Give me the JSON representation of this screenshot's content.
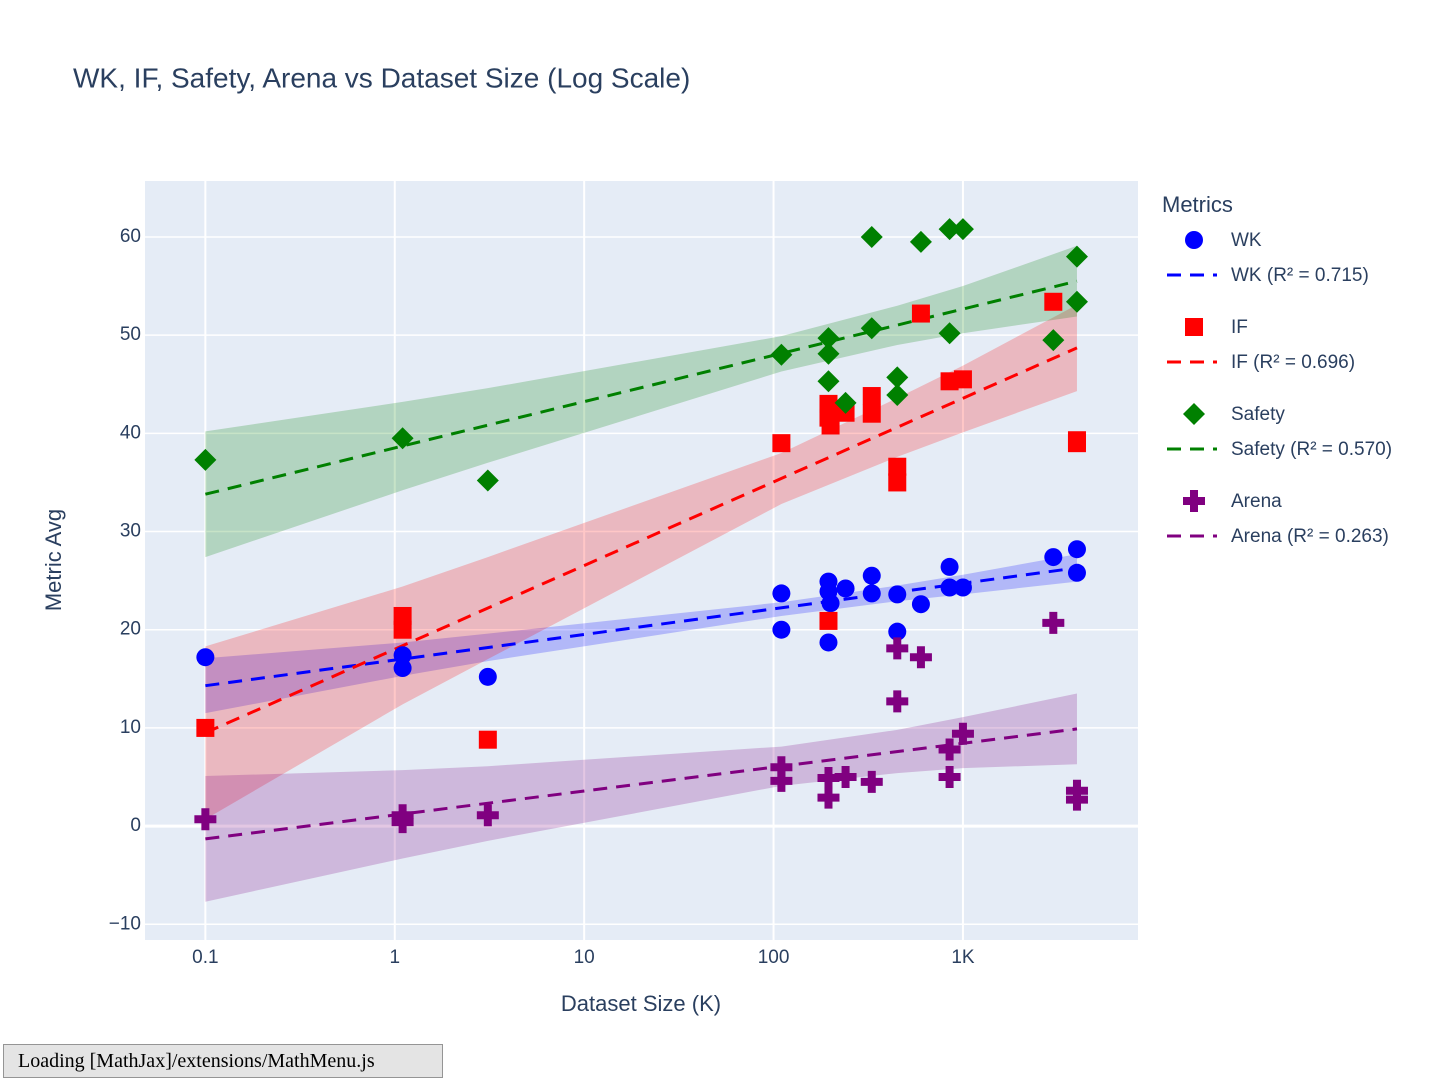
{
  "chart_data": {
    "type": "scatter",
    "title": "WK, IF, Safety, Arena vs Dataset Size (Log Scale)",
    "xlabel": "Dataset Size (K)",
    "ylabel": "Metric Avg",
    "xscale": "log",
    "xlim": [
      0.048,
      8400
    ],
    "ylim": [
      -11.6,
      65.7
    ],
    "xticks": [
      0.1,
      1,
      10,
      100,
      {
        "value": 1000,
        "label": "1K"
      }
    ],
    "yticks": [
      {
        "value": -10,
        "label": "−10"
      },
      0,
      10,
      20,
      30,
      40,
      50,
      60
    ],
    "grid": true,
    "legend_title": "Metrics",
    "legend_position": "right",
    "series": [
      {
        "name": "WK",
        "color": "#0000ff",
        "marker": "circle",
        "x": [
          0.1,
          1.1,
          1.1,
          3.1,
          110,
          110,
          195,
          195,
          195,
          200,
          240,
          330,
          330,
          450,
          450,
          600,
          850,
          850,
          1000,
          3000,
          4000,
          4000
        ],
        "values": [
          17.2,
          17.4,
          16.1,
          15.2,
          23.7,
          20.0,
          24.9,
          23.9,
          18.7,
          22.7,
          24.2,
          25.5,
          23.7,
          23.6,
          19.8,
          22.6,
          26.4,
          24.3,
          24.3,
          27.4,
          28.2,
          25.8
        ],
        "fit": {
          "name": "WK (R² = 0.715)",
          "x": [
            0.1,
            4000
          ],
          "values": [
            14.3,
            26.3
          ]
        },
        "band": {
          "x": [
            0.1,
            1.1,
            3.1,
            110,
            450,
            1000,
            4000
          ],
          "upper": [
            17.1,
            18.7,
            19.6,
            22.8,
            24.5,
            25.6,
            27.7
          ],
          "lower": [
            11.5,
            15.3,
            16.8,
            21.4,
            22.9,
            23.6,
            24.9
          ]
        }
      },
      {
        "name": "IF",
        "color": "#ff0000",
        "marker": "square",
        "x": [
          0.1,
          1.1,
          1.1,
          3.1,
          110,
          195,
          195,
          195,
          200,
          240,
          330,
          330,
          450,
          450,
          600,
          850,
          1000,
          3000,
          4000,
          4000
        ],
        "values": [
          10.0,
          21.4,
          20.0,
          8.8,
          39.0,
          43.0,
          41.6,
          20.9,
          40.8,
          42.1,
          43.8,
          42.0,
          36.6,
          35.0,
          52.2,
          45.3,
          45.5,
          53.4,
          39.3,
          39.0
        ],
        "fit": {
          "name": "IF (R² = 0.696)",
          "x": [
            0.1,
            4000
          ],
          "values": [
            9.5,
            48.7
          ]
        },
        "band": {
          "x": [
            0.1,
            1.1,
            3.1,
            110,
            450,
            1000,
            4000
          ],
          "upper": [
            18.3,
            24.4,
            27.4,
            38.0,
            43.6,
            46.9,
            53.1
          ],
          "lower": [
            0.7,
            12.4,
            17.0,
            32.8,
            37.6,
            40.1,
            44.3
          ]
        }
      },
      {
        "name": "Safety",
        "color": "#008000",
        "marker": "diamond",
        "x": [
          0.1,
          1.1,
          3.1,
          110,
          195,
          195,
          195,
          240,
          330,
          330,
          450,
          450,
          600,
          850,
          850,
          1000,
          3000,
          4000,
          4000
        ],
        "values": [
          37.3,
          39.5,
          35.2,
          48.0,
          49.7,
          48.1,
          45.3,
          43.1,
          60.0,
          50.7,
          45.7,
          43.9,
          59.5,
          60.8,
          50.2,
          60.8,
          49.5,
          58.0,
          53.4
        ],
        "fit": {
          "name": "Safety (R² = 0.570)",
          "x": [
            0.1,
            4000
          ],
          "values": [
            33.8,
            55.5
          ]
        },
        "band": {
          "x": [
            0.1,
            1.1,
            3.1,
            110,
            450,
            1000,
            4000
          ],
          "upper": [
            40.2,
            43.2,
            44.6,
            49.9,
            53.0,
            55.0,
            59.1
          ],
          "lower": [
            27.4,
            34.2,
            37.0,
            46.3,
            49.0,
            50.2,
            51.9
          ]
        }
      },
      {
        "name": "Arena",
        "color": "#800080",
        "marker": "cross",
        "x": [
          0.1,
          1.1,
          1.1,
          3.1,
          110,
          110,
          195,
          195,
          240,
          330,
          450,
          450,
          600,
          850,
          850,
          1000,
          3000,
          4000,
          4000
        ],
        "values": [
          0.7,
          1.1,
          0.4,
          1.1,
          6.0,
          4.6,
          4.9,
          2.9,
          5.0,
          4.5,
          18.1,
          12.7,
          17.2,
          7.8,
          5.0,
          9.4,
          20.7,
          3.6,
          2.7
        ],
        "fit": {
          "name": "Arena (R² = 0.263)",
          "x": [
            0.1,
            4000
          ],
          "values": [
            -1.3,
            9.9
          ]
        },
        "band": {
          "x": [
            0.1,
            1.1,
            3.1,
            110,
            450,
            1000,
            4000
          ],
          "upper": [
            5.1,
            5.7,
            6.1,
            8.1,
            9.8,
            11.1,
            13.5
          ],
          "lower": [
            -7.7,
            -3.3,
            -1.5,
            4.1,
            5.4,
            5.9,
            6.3
          ]
        }
      }
    ]
  },
  "status": "Loading [MathJax]/extensions/MathMenu.js"
}
